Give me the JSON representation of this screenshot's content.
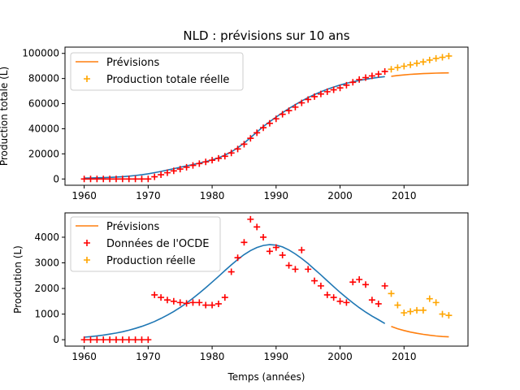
{
  "colors": {
    "fit": "#1f77b4",
    "forecast": "#ff7f0e",
    "data": "#ff0000",
    "actual": "#ffa500"
  },
  "chart_data": [
    {
      "type": "line",
      "title": "NLD : prévisions sur 10 ans",
      "xlabel": "",
      "ylabel": "Production totale (L)",
      "xlim": [
        1957,
        2020
      ],
      "ylim": [
        -5000,
        105000
      ],
      "xticks": [
        1960,
        1970,
        1980,
        1990,
        2000,
        2010
      ],
      "yticks": [
        0,
        20000,
        40000,
        60000,
        80000,
        100000
      ],
      "grid": false,
      "legend_position": "upper left",
      "legend": [
        "Prévisions",
        "Production totale réelle"
      ],
      "fit_curve": {
        "x": [
          1960,
          1961,
          1962,
          1963,
          1964,
          1965,
          1966,
          1967,
          1968,
          1969,
          1970,
          1971,
          1972,
          1973,
          1974,
          1975,
          1976,
          1977,
          1978,
          1979,
          1980,
          1981,
          1982,
          1983,
          1984,
          1985,
          1986,
          1987,
          1988,
          1989,
          1990,
          1991,
          1992,
          1993,
          1994,
          1995,
          1996,
          1997,
          1998,
          1999,
          2000,
          2001,
          2002,
          2003,
          2004,
          2005,
          2006,
          2007
        ],
        "y": [
          700,
          800,
          950,
          1100,
          1300,
          1550,
          1850,
          2250,
          2750,
          3350,
          4100,
          5000,
          6000,
          7100,
          8200,
          9300,
          10400,
          11500,
          12600,
          13800,
          15200,
          16900,
          19000,
          21600,
          24800,
          28600,
          32900,
          37400,
          41700,
          45600,
          49300,
          52800,
          56100,
          59200,
          62100,
          64800,
          67200,
          69400,
          71400,
          73200,
          74800,
          76200,
          77400,
          78500,
          79400,
          80200,
          80900,
          81500
        ]
      },
      "series_data": {
        "name": "Production totale réelle",
        "x": [
          1960,
          1961,
          1962,
          1963,
          1964,
          1965,
          1966,
          1967,
          1968,
          1969,
          1970,
          1971,
          1972,
          1973,
          1974,
          1975,
          1976,
          1977,
          1978,
          1979,
          1980,
          1981,
          1982,
          1983,
          1984,
          1985,
          1986,
          1987,
          1988,
          1989,
          1990,
          1991,
          1992,
          1993,
          1994,
          1995,
          1996,
          1997,
          1998,
          1999,
          2000,
          2001,
          2002,
          2003,
          2004,
          2005,
          2006,
          2007
        ],
        "y": [
          0,
          0,
          0,
          0,
          0,
          0,
          0,
          0,
          0,
          0,
          0,
          1750,
          3400,
          4950,
          6450,
          7900,
          9350,
          10800,
          12250,
          13600,
          14950,
          16400,
          18100,
          20700,
          23900,
          27700,
          32400,
          36800,
          40800,
          44300,
          47900,
          51500,
          54400,
          57200,
          60600,
          63300,
          65600,
          67700,
          69500,
          71000,
          72500,
          74700,
          77000,
          79200,
          80700,
          82100,
          83500,
          85600
        ]
      },
      "forecast_curve": {
        "name": "Prévisions",
        "x": [
          2008,
          2009,
          2010,
          2011,
          2012,
          2013,
          2014,
          2015,
          2016,
          2017
        ],
        "y": [
          81800,
          82400,
          82900,
          83300,
          83600,
          83900,
          84100,
          84300,
          84400,
          84500
        ]
      },
      "actual_points": {
        "x": [
          2008,
          2009,
          2010,
          2011,
          2012,
          2013,
          2014,
          2015,
          2016,
          2017
        ],
        "y": [
          87400,
          88700,
          89800,
          90900,
          92100,
          93200,
          94700,
          96000,
          96900,
          97900
        ]
      }
    },
    {
      "type": "line",
      "title": "",
      "xlabel": "Temps (années)",
      "ylabel": "Prodcution (L)",
      "xlim": [
        1957,
        2020
      ],
      "ylim": [
        -250,
        4950
      ],
      "xticks": [
        1960,
        1970,
        1980,
        1990,
        2000,
        2010
      ],
      "yticks": [
        0,
        1000,
        2000,
        3000,
        4000
      ],
      "grid": false,
      "legend_position": "upper left",
      "legend": [
        "Prévisions",
        "Données de l'OCDE",
        "Production réelle"
      ],
      "fit_curve": {
        "x": [
          1960,
          1961,
          1962,
          1963,
          1964,
          1965,
          1966,
          1967,
          1968,
          1969,
          1970,
          1971,
          1972,
          1973,
          1974,
          1975,
          1976,
          1977,
          1978,
          1979,
          1980,
          1981,
          1982,
          1983,
          1984,
          1985,
          1986,
          1987,
          1988,
          1989,
          1990,
          1991,
          1992,
          1993,
          1994,
          1995,
          1996,
          1997,
          1998,
          1999,
          2000,
          2001,
          2002,
          2003,
          2004,
          2005,
          2006,
          2007
        ],
        "y": [
          100,
          120,
          150,
          180,
          220,
          260,
          310,
          370,
          440,
          520,
          610,
          710,
          830,
          960,
          1100,
          1260,
          1430,
          1620,
          1820,
          2030,
          2250,
          2470,
          2700,
          2920,
          3130,
          3320,
          3480,
          3600,
          3680,
          3710,
          3690,
          3620,
          3500,
          3350,
          3170,
          2970,
          2750,
          2530,
          2300,
          2070,
          1850,
          1640,
          1440,
          1250,
          1080,
          920,
          780,
          630
        ]
      },
      "series_data": {
        "name": "Données de l'OCDE",
        "x": [
          1960,
          1961,
          1962,
          1963,
          1964,
          1965,
          1966,
          1967,
          1968,
          1969,
          1970,
          1971,
          1972,
          1973,
          1974,
          1975,
          1976,
          1977,
          1978,
          1979,
          1980,
          1981,
          1982,
          1983,
          1984,
          1985,
          1986,
          1987,
          1988,
          1989,
          1990,
          1991,
          1992,
          1993,
          1994,
          1995,
          1996,
          1997,
          1998,
          1999,
          2000,
          2001,
          2002,
          2003,
          2004,
          2005,
          2006,
          2007
        ],
        "y": [
          0,
          0,
          0,
          0,
          0,
          0,
          0,
          0,
          0,
          0,
          0,
          1750,
          1650,
          1550,
          1500,
          1450,
          1420,
          1450,
          1450,
          1350,
          1350,
          1400,
          1650,
          2650,
          3200,
          3800,
          4700,
          4400,
          4000,
          3450,
          3600,
          3300,
          2900,
          2750,
          3500,
          2750,
          2300,
          2100,
          1750,
          1650,
          1500,
          1450,
          2250,
          2350,
          2150,
          1550,
          1400,
          2100
        ]
      },
      "forecast_curve": {
        "name": "Prévisions",
        "x": [
          2008,
          2009,
          2010,
          2011,
          2012,
          2013,
          2014,
          2015,
          2016,
          2017
        ],
        "y": [
          520,
          430,
          360,
          300,
          250,
          210,
          175,
          145,
          125,
          110
        ]
      },
      "actual_points": {
        "name": "Production réelle",
        "x": [
          2008,
          2009,
          2010,
          2011,
          2012,
          2013,
          2014,
          2015,
          2016,
          2017
        ],
        "y": [
          1800,
          1350,
          1050,
          1100,
          1150,
          1150,
          1600,
          1450,
          1000,
          950
        ]
      }
    }
  ]
}
